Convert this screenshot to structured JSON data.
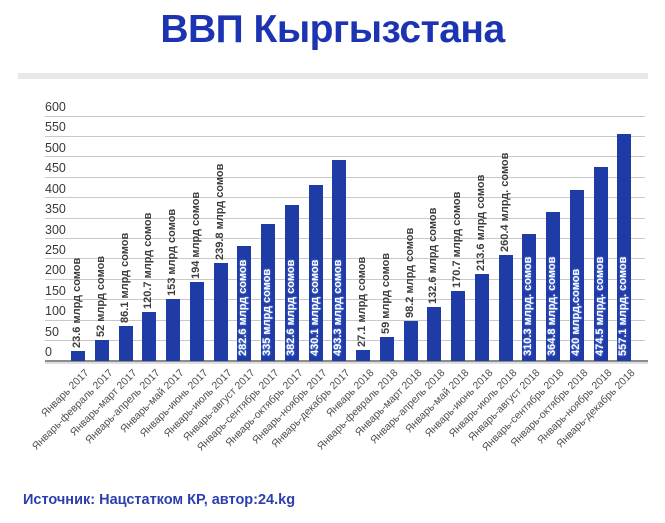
{
  "title": "ВВП Кыргызстана",
  "source_line": "Источник: Нацстатком КР, автор:24.kg",
  "colors": {
    "title": "#1c34b2",
    "bar": "#1e3ba6",
    "value_label_dark": "#3d3d3d",
    "value_label_light": "#ffffff",
    "x_tick_label": "#4f4f4f",
    "y_tick_label": "#383838",
    "gridline": "#c9c9c9",
    "axis_line": "#8c8c8c",
    "divider": "#e8e8e8",
    "source_text": "#2b3fae",
    "background": "#ffffff"
  },
  "chart_data": {
    "type": "bar",
    "title": "ВВП Кыргызстана",
    "unit": "млрд сомов",
    "grid": true,
    "legend": "none",
    "ylim": [
      0,
      600
    ],
    "ytick_step": 50,
    "yticks": [
      0,
      50,
      100,
      150,
      200,
      250,
      300,
      350,
      400,
      450,
      500,
      550,
      600
    ],
    "categories": [
      "Январь 2017",
      "Январь-февраль 2017",
      "Январь-март 2017",
      "Январь-апрель 2017",
      "Январь-май 2017",
      "Январь-июнь 2017",
      "Январь-июль 2017",
      "Январь-август 2017",
      "Январь-сентябрь 2017",
      "Январь-октябрь 2017",
      "Январь-ноябрь 2017",
      "Январь-декабрь 2017",
      "Январь 2018",
      "Январь-февраль 2018",
      "Январь-март 2018",
      "Январь-апрель 2018",
      "Январь-май 2018",
      "Январь-июнь 2018",
      "Январь-июль 2018",
      "Январь-август 2018",
      "Январь-сентябрь 2018",
      "Январь-октябрь 2018",
      "Январь-ноябрь 2018",
      "Январь-декабрь 2018"
    ],
    "values": [
      23.6,
      52,
      86.1,
      120.7,
      153,
      194,
      239.8,
      282.6,
      335,
      382.6,
      430.1,
      493.3,
      27.1,
      59,
      98.2,
      132.6,
      170.7,
      213.6,
      260.4,
      310.3,
      364.8,
      420,
      474.5,
      557.1
    ],
    "bar_labels": [
      "23.6 млрд сомов",
      "52 млрд сомов",
      "86.1 млрд сомов",
      "120.7 млрд сомов",
      "153 млрд сомов",
      "194 млрд сомов",
      "239.8 млрд сомов",
      "282.6 млрд сомов",
      "335 млрд сомов",
      "382.6 млрд сомов",
      "430.1 млрд сомов",
      "493.3 млрд сомов",
      "27.1 млрд сомов",
      "59 млрд сомов",
      "98.2 млрд сомов",
      "132.6 млрд сомов",
      "170.7 млрд сомов",
      "213.6 млрд сомов",
      "260.4 млрд. сомов",
      "310.3 млрд. сомов",
      "364.8 млрд. сомов",
      "420 млрд.сомов",
      "474.5 млрд. сомов",
      "557.1 млрд. сомов"
    ],
    "label_inside": [
      false,
      false,
      false,
      false,
      false,
      false,
      false,
      true,
      true,
      true,
      true,
      true,
      false,
      false,
      false,
      false,
      false,
      false,
      false,
      true,
      true,
      true,
      true,
      true
    ]
  }
}
